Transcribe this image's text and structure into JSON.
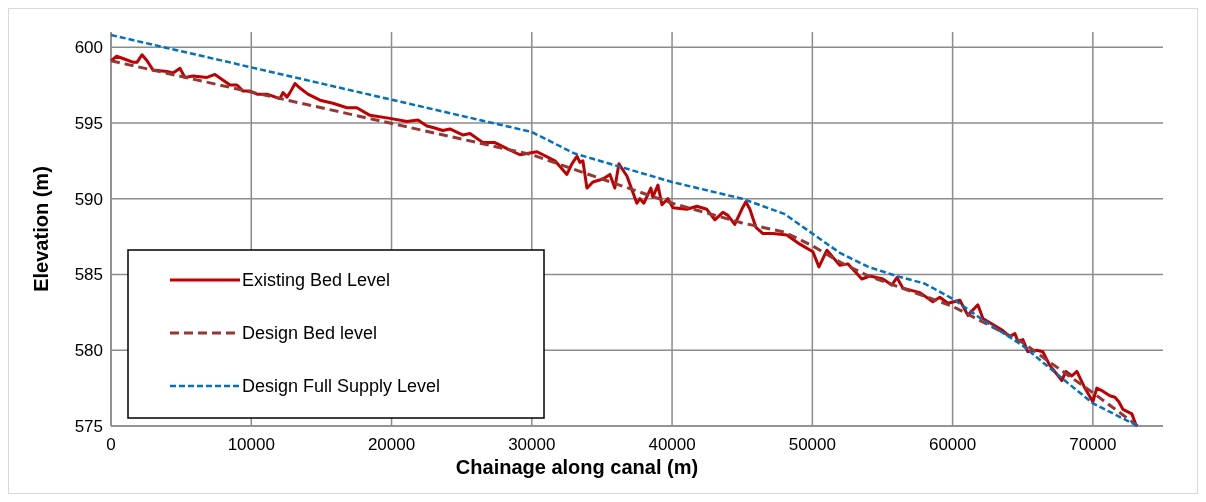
{
  "chart_data": {
    "type": "line",
    "xlabel": "Chainage along canal (m)",
    "ylabel": "Elevation (m)",
    "xlim": [
      0,
      75000
    ],
    "xticks": [
      0,
      10000,
      20000,
      30000,
      40000,
      50000,
      60000,
      70000
    ],
    "ylim": [
      575,
      601
    ],
    "yticks": [
      575,
      580,
      585,
      590,
      595,
      600
    ],
    "grid": true,
    "legend": "bottom left",
    "series": [
      {
        "name": "Existing Bed Level",
        "color": "#c00000",
        "line_style": "solid",
        "x": [
          0,
          400,
          1000,
          1600,
          1850,
          2210,
          2570,
          2990,
          3990,
          4420,
          4920,
          5270,
          5850,
          6840,
          7410,
          8480,
          8980,
          9410,
          9910,
          10410,
          11120,
          12050,
          12260,
          12550,
          12760,
          13120,
          13470,
          14040,
          14900,
          15820,
          16820,
          17530,
          18460,
          19890,
          21100,
          21880,
          22520,
          22950,
          23660,
          24160,
          24880,
          25090,
          25590,
          26520,
          27370,
          28230,
          29150,
          30370,
          31650,
          32500,
          32860,
          33220,
          33430,
          33640,
          33930,
          34360,
          35070,
          35570,
          35920,
          36210,
          36780,
          37490,
          37710,
          37990,
          38490,
          38630,
          38990,
          39280,
          39700,
          40060,
          41060,
          41770,
          42480,
          43050,
          43620,
          43980,
          44470,
          44970,
          45260,
          45550,
          45980,
          46480,
          47190,
          48180,
          49110,
          50040,
          50470,
          51040,
          51960,
          52530,
          53530,
          54100,
          55030,
          55670,
          56030,
          56450,
          57670,
          58590,
          59090,
          59660,
          60520,
          61090,
          61800,
          62160,
          62870,
          63580,
          64080,
          64440,
          64650,
          65010,
          65360,
          66010,
          66430,
          66930,
          67790,
          68070,
          68500,
          68860,
          69430,
          70000,
          70280,
          70710,
          71210,
          71570,
          71850,
          72140,
          72780,
          73060,
          73130
        ],
        "values": [
          599.1,
          599.4,
          599.2,
          599.0,
          599.0,
          599.5,
          599.1,
          598.5,
          598.4,
          598.3,
          598.6,
          598.0,
          598.1,
          598.0,
          598.2,
          597.5,
          597.5,
          597.1,
          597.1,
          596.9,
          596.9,
          596.6,
          597.0,
          596.7,
          597.0,
          597.6,
          597.3,
          596.9,
          596.5,
          596.3,
          596.0,
          596.0,
          595.5,
          595.3,
          595.1,
          595.2,
          594.8,
          594.7,
          594.5,
          594.6,
          594.3,
          594.2,
          594.3,
          593.7,
          593.7,
          593.3,
          592.9,
          593.1,
          592.5,
          591.6,
          592.3,
          592.8,
          592.4,
          592.5,
          590.7,
          591.1,
          591.3,
          591.6,
          590.7,
          592.3,
          591.5,
          589.7,
          590.0,
          589.7,
          590.7,
          590.1,
          590.9,
          589.6,
          590.0,
          589.4,
          589.3,
          589.5,
          589.3,
          588.6,
          589.1,
          588.9,
          588.3,
          589.3,
          589.8,
          589.3,
          588.1,
          587.7,
          587.7,
          587.6,
          587.0,
          586.5,
          585.5,
          586.6,
          585.6,
          585.7,
          584.7,
          584.9,
          584.7,
          584.3,
          584.8,
          584.1,
          583.8,
          583.2,
          583.5,
          583.1,
          583.3,
          582.3,
          583.0,
          582.1,
          581.7,
          581.3,
          580.9,
          581.1,
          580.6,
          580.7,
          579.9,
          580.0,
          579.9,
          579.0,
          578.0,
          578.6,
          578.3,
          578.6,
          577.5,
          576.6,
          577.5,
          577.3,
          577.0,
          576.9,
          576.6,
          576.1,
          575.8,
          575.1,
          575.0
        ]
      },
      {
        "name": "Design Bed level",
        "color": "#953735",
        "line_style": "dashed",
        "x": [
          0,
          30000,
          40000,
          45000,
          48000,
          50000,
          52000,
          54000,
          57000,
          60000,
          65000,
          68000,
          70000,
          73200
        ],
        "values": [
          599.1,
          592.9,
          589.7,
          588.4,
          587.8,
          586.9,
          585.8,
          584.9,
          583.9,
          582.9,
          580.5,
          578.5,
          577.2,
          575.0
        ]
      },
      {
        "name": "Design Full Supply Level",
        "color": "#0070c0",
        "line_style": "dotted",
        "x": [
          0,
          30000,
          33000,
          40000,
          45000,
          48000,
          50000,
          52000,
          54000,
          56000,
          58000,
          60000,
          62000,
          65000,
          68000,
          70000,
          73200
        ],
        "values": [
          600.8,
          594.4,
          593.0,
          591.1,
          590.0,
          589.0,
          587.7,
          586.4,
          585.5,
          584.9,
          584.4,
          583.4,
          582.1,
          580.3,
          578.0,
          576.5,
          575.0
        ]
      }
    ]
  }
}
